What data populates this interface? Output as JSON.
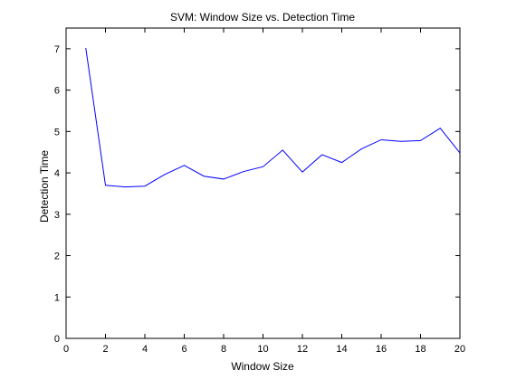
{
  "chart_data": {
    "type": "line",
    "title": "SVM: Window Size vs. Detection Time",
    "xlabel": "Window Size",
    "ylabel": "Detection Time",
    "xlim": [
      0,
      20
    ],
    "ylim": [
      0,
      7.5
    ],
    "xticks": [
      0,
      2,
      4,
      6,
      8,
      10,
      12,
      14,
      16,
      18,
      20
    ],
    "yticks": [
      0,
      1,
      2,
      3,
      4,
      5,
      6,
      7
    ],
    "grid": false,
    "line_color": "#0000ff",
    "series": [
      {
        "x": [
          1,
          2,
          3,
          4,
          5,
          6,
          7,
          8,
          9,
          10,
          11,
          12,
          13,
          14,
          15,
          16,
          17,
          18,
          19,
          20
        ],
        "y": [
          7.02,
          3.7,
          3.66,
          3.68,
          3.96,
          4.18,
          3.92,
          3.85,
          4.03,
          4.15,
          4.55,
          4.02,
          4.44,
          4.25,
          4.58,
          4.8,
          4.76,
          4.78,
          5.08,
          4.48
        ]
      }
    ]
  }
}
